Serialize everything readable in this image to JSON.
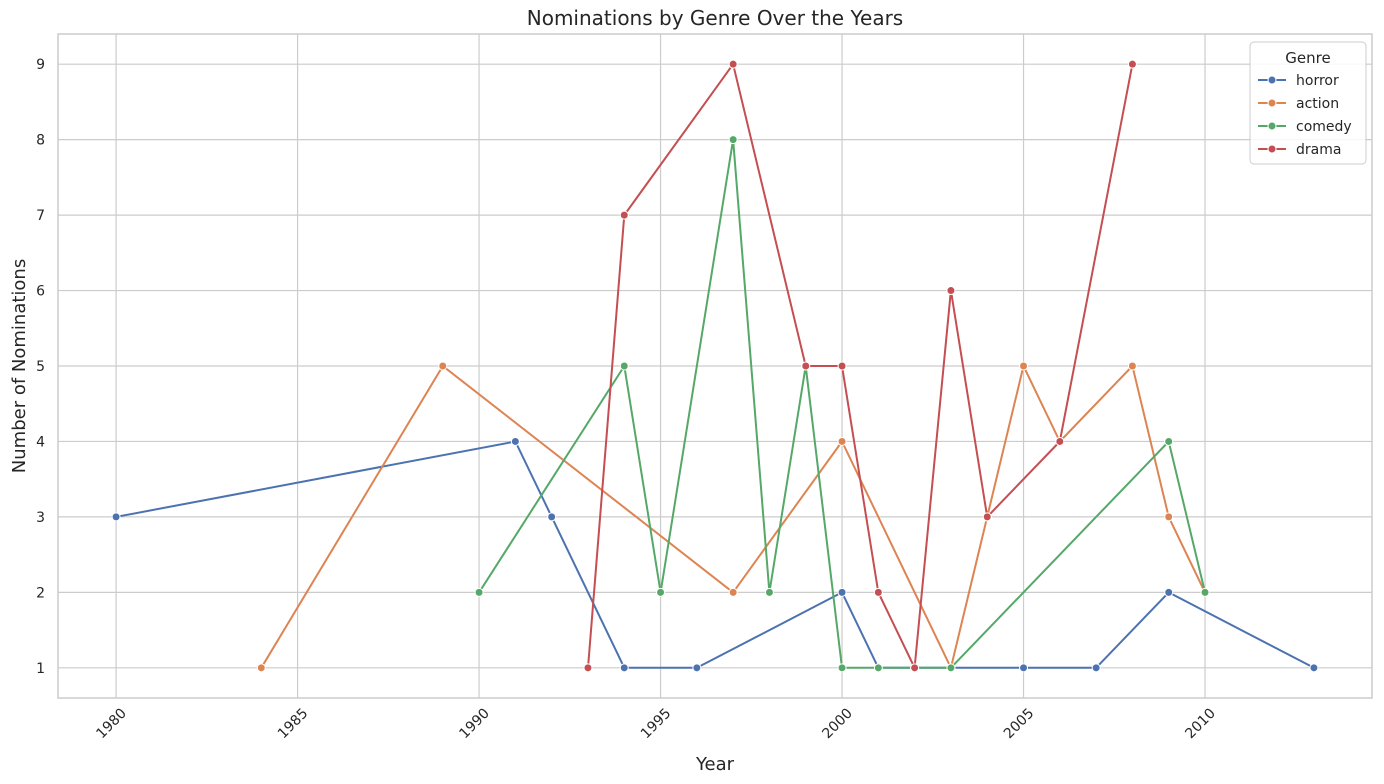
{
  "chart_data": {
    "type": "line",
    "title": "Nominations by Genre Over the Years",
    "xlabel": "Year",
    "ylabel": "Number of Nominations",
    "xlim": [
      1978.4,
      2014.6
    ],
    "ylim": [
      0.6,
      9.4
    ],
    "xticks": [
      1980,
      1985,
      1990,
      1995,
      2000,
      2005,
      2010
    ],
    "yticks": [
      1,
      2,
      3,
      4,
      5,
      6,
      7,
      8,
      9
    ],
    "grid": true,
    "legend": {
      "title": "Genre",
      "position": "top-right"
    },
    "series": [
      {
        "name": "horror",
        "color": "#4c72b0",
        "x": [
          1980,
          1991,
          1992,
          1994,
          1996,
          2000,
          2001,
          2002,
          2003,
          2005,
          2007,
          2009,
          2013
        ],
        "y": [
          3,
          4,
          3,
          1,
          1,
          2,
          1,
          1,
          1,
          1,
          1,
          2,
          1
        ]
      },
      {
        "name": "action",
        "color": "#dd8452",
        "x": [
          1984,
          1989,
          1997,
          2000,
          2003,
          2004,
          2005,
          2006,
          2008,
          2009,
          2010
        ],
        "y": [
          1,
          5,
          2,
          4,
          1,
          3,
          5,
          4,
          5,
          3,
          2
        ]
      },
      {
        "name": "comedy",
        "color": "#55a868",
        "x": [
          1990,
          1994,
          1995,
          1997,
          1998,
          1999,
          2000,
          2001,
          2002,
          2003,
          2009,
          2010
        ],
        "y": [
          2,
          5,
          2,
          8,
          2,
          5,
          1,
          1,
          1,
          1,
          4,
          2
        ]
      },
      {
        "name": "drama",
        "color": "#c44e52",
        "x": [
          1993,
          1994,
          1997,
          1999,
          2000,
          2001,
          2002,
          2003,
          2004,
          2006,
          2008
        ],
        "y": [
          1,
          7,
          9,
          5,
          5,
          2,
          1,
          6,
          3,
          4,
          9
        ]
      }
    ]
  }
}
